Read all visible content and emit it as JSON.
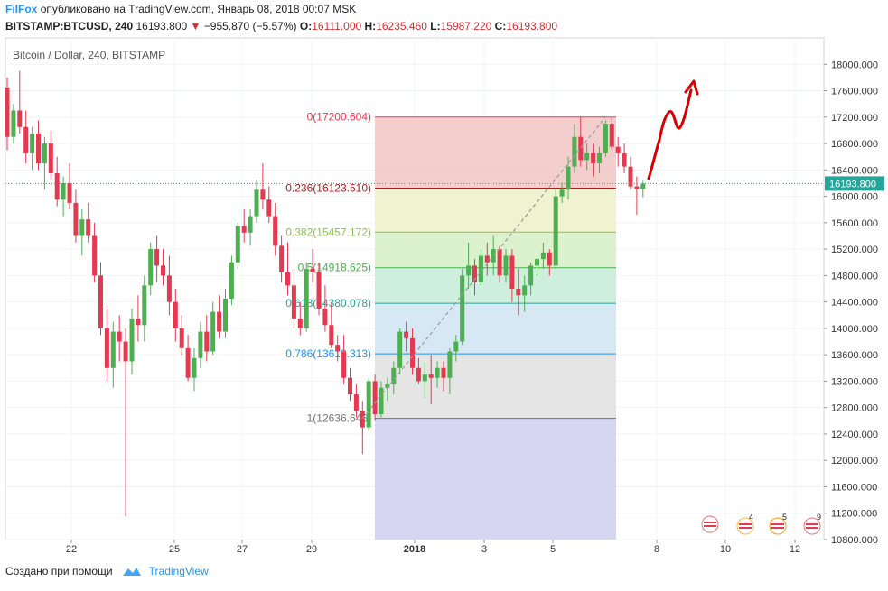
{
  "header": {
    "brand": "FilFox",
    "published": "опубликовано на TradingView.com, Январь 08, 2018 00:07 MSK",
    "symbol": "BITSTAMP:BTCUSD, 240",
    "last": "16193.800",
    "change": "−955.870 (−5.57%)",
    "open_label": "O:",
    "open": "16111.000",
    "high_label": "H:",
    "high": "16235.460",
    "low_label": "L:",
    "low": "15987.220",
    "close_label": "C:",
    "close": "16193.800"
  },
  "footer": {
    "created_with": "Создано при помощи",
    "tradingview": "TradingView"
  },
  "colors": {
    "up": "#4caf50",
    "down": "#e53950",
    "price_line": "#26a69a",
    "arrow": "#d50000",
    "brand": "#2196f3"
  },
  "chart_data": {
    "type": "candlestick",
    "title": "Bitcoin / Dollar, 240, BITSTAMP",
    "ylim": [
      10800,
      18400
    ],
    "y_ticks": [
      "18000.000",
      "17600.000",
      "17200.000",
      "16800.000",
      "16400.000",
      "16000.000",
      "15600.000",
      "15200.000",
      "14800.000",
      "14400.000",
      "14000.000",
      "13600.000",
      "13200.000",
      "12800.000",
      "12400.000",
      "12000.000",
      "11600.000",
      "11200.000",
      "10800.000"
    ],
    "x_ticks": [
      "22",
      "25",
      "27",
      "29",
      "2018",
      "3",
      "5",
      "8",
      "10",
      "12"
    ],
    "last_price": 16193.8,
    "last_price_label": "16193.800",
    "fib_levels": [
      {
        "ratio": 0,
        "price": 17200.604,
        "label": "0(17200.604)",
        "color": "#e53950",
        "zone": "#f2c4c4"
      },
      {
        "ratio": 0.236,
        "price": 16123.51,
        "label": "0.236(16123.510)",
        "color": "#b71c1c",
        "zone": "#eef0c8"
      },
      {
        "ratio": 0.382,
        "price": 15457.172,
        "label": "0.382(15457.172)",
        "color": "#8bc34a",
        "zone": "#d6efc6"
      },
      {
        "ratio": 0.5,
        "price": 14918.625,
        "label": "0.5(14918.625)",
        "color": "#4caf50",
        "zone": "#c6ecd8"
      },
      {
        "ratio": 0.618,
        "price": 14380.078,
        "label": "0.618(14380.078)",
        "color": "#26a69a",
        "zone": "#cfe4f2"
      },
      {
        "ratio": 0.786,
        "price": 13613.313,
        "label": "0.786(13613.313)",
        "color": "#2196f3",
        "zone": "#e0e0e0"
      },
      {
        "ratio": 1,
        "price": 12636.646,
        "label": "1(12636.646)",
        "color": "#757575",
        "zone": "#cfcff0"
      }
    ],
    "candles": [
      [
        17650,
        17800,
        16700,
        16900
      ],
      [
        16900,
        17400,
        16800,
        17300
      ],
      [
        17300,
        17900,
        16950,
        17050
      ],
      [
        17050,
        17300,
        16500,
        16650
      ],
      [
        16650,
        17050,
        16400,
        16950
      ],
      [
        16950,
        17150,
        16400,
        16500
      ],
      [
        16500,
        16900,
        16100,
        16800
      ],
      [
        16800,
        17000,
        16250,
        16350
      ],
      [
        16350,
        16600,
        15850,
        15950
      ],
      [
        15950,
        16300,
        15700,
        16200
      ],
      [
        16200,
        16500,
        15800,
        15900
      ],
      [
        15900,
        16100,
        15300,
        15400
      ],
      [
        15400,
        15800,
        15100,
        15650
      ],
      [
        15650,
        15900,
        15300,
        15400
      ],
      [
        15400,
        15600,
        14700,
        14800
      ],
      [
        14800,
        15000,
        13900,
        14000
      ],
      [
        14000,
        14300,
        13200,
        13400
      ],
      [
        13400,
        14100,
        13100,
        13950
      ],
      [
        13950,
        14200,
        13500,
        13800
      ],
      [
        13800,
        14000,
        11150,
        13500
      ],
      [
        13500,
        14300,
        13300,
        14150
      ],
      [
        14150,
        14500,
        13800,
        14050
      ],
      [
        14050,
        14800,
        13800,
        14650
      ],
      [
        14650,
        15300,
        14500,
        15200
      ],
      [
        15200,
        15400,
        14700,
        14950
      ],
      [
        14950,
        15200,
        14650,
        14800
      ],
      [
        14800,
        15100,
        14200,
        14400
      ],
      [
        14400,
        14600,
        13800,
        14000
      ],
      [
        14000,
        14200,
        13600,
        13700
      ],
      [
        13700,
        13900,
        13200,
        13250
      ],
      [
        13250,
        13700,
        13050,
        13550
      ],
      [
        13550,
        14100,
        13400,
        13950
      ],
      [
        13950,
        14200,
        13500,
        13650
      ],
      [
        13650,
        14400,
        13600,
        14250
      ],
      [
        14250,
        14500,
        13850,
        13950
      ],
      [
        13950,
        14600,
        13850,
        14450
      ],
      [
        14450,
        15100,
        14350,
        15000
      ],
      [
        15000,
        15600,
        14900,
        15550
      ],
      [
        15550,
        15800,
        15300,
        15450
      ],
      [
        15450,
        15800,
        15250,
        15700
      ],
      [
        15700,
        16250,
        15600,
        16100
      ],
      [
        16100,
        16500,
        15800,
        15950
      ],
      [
        15950,
        16150,
        15600,
        15700
      ],
      [
        15700,
        15900,
        15100,
        15250
      ],
      [
        15250,
        15400,
        14700,
        14850
      ],
      [
        14850,
        15300,
        14500,
        14650
      ],
      [
        14650,
        14900,
        14000,
        14150
      ],
      [
        14150,
        14400,
        13900,
        14000
      ],
      [
        14000,
        15000,
        13950,
        14900
      ],
      [
        14900,
        15200,
        14700,
        14850
      ],
      [
        14850,
        15000,
        14200,
        14300
      ],
      [
        14300,
        14650,
        13950,
        14050
      ],
      [
        14050,
        14400,
        13700,
        13750
      ],
      [
        13750,
        13900,
        13500,
        13650
      ],
      [
        13650,
        13900,
        13150,
        13250
      ],
      [
        13250,
        13400,
        12900,
        13000
      ],
      [
        13000,
        13150,
        12650,
        12750
      ],
      [
        12750,
        12900,
        12100,
        12500
      ],
      [
        12500,
        13250,
        12450,
        13200
      ],
      [
        13200,
        13300,
        12600,
        12700
      ],
      [
        12700,
        13200,
        12650,
        13100
      ],
      [
        13100,
        13250,
        12900,
        13150
      ],
      [
        13150,
        13500,
        13000,
        13400
      ],
      [
        13400,
        14000,
        13300,
        13950
      ],
      [
        13950,
        14100,
        13650,
        13850
      ],
      [
        13850,
        14000,
        13300,
        13400
      ],
      [
        13400,
        13550,
        13150,
        13200
      ],
      [
        13200,
        13500,
        12950,
        13300
      ],
      [
        13300,
        13600,
        12850,
        13250
      ],
      [
        13250,
        13500,
        13100,
        13400
      ],
      [
        13400,
        13500,
        13050,
        13250
      ],
      [
        13250,
        13700,
        13000,
        13650
      ],
      [
        13650,
        13900,
        13500,
        13800
      ],
      [
        13800,
        14900,
        13750,
        14800
      ],
      [
        14800,
        15300,
        14600,
        14950
      ],
      [
        14950,
        15050,
        14500,
        14700
      ],
      [
        14700,
        15200,
        14650,
        15100
      ],
      [
        15100,
        15300,
        14800,
        15000
      ],
      [
        15000,
        15400,
        14800,
        15200
      ],
      [
        15200,
        15250,
        14700,
        14800
      ],
      [
        14800,
        15200,
        14700,
        15100
      ],
      [
        15100,
        15200,
        14400,
        14600
      ],
      [
        14600,
        14900,
        14200,
        14500
      ],
      [
        14500,
        14800,
        14250,
        14650
      ],
      [
        14650,
        15000,
        14500,
        14950
      ],
      [
        14950,
        15100,
        14800,
        15050
      ],
      [
        15050,
        15300,
        14900,
        15150
      ],
      [
        15150,
        15200,
        14800,
        14950
      ],
      [
        14950,
        16100,
        14900,
        16000
      ],
      [
        16000,
        16200,
        15900,
        16100
      ],
      [
        16100,
        16600,
        15950,
        16450
      ],
      [
        16450,
        17100,
        16350,
        16900
      ],
      [
        16900,
        17200,
        16450,
        16550
      ],
      [
        16550,
        16800,
        16400,
        16650
      ],
      [
        16650,
        16800,
        16300,
        16500
      ],
      [
        16500,
        16750,
        16350,
        16650
      ],
      [
        16650,
        17150,
        16600,
        17100
      ],
      [
        17100,
        17200,
        16700,
        16750
      ],
      [
        16750,
        16900,
        16450,
        16650
      ],
      [
        16650,
        16800,
        16350,
        16450
      ],
      [
        16450,
        16600,
        16100,
        16150
      ],
      [
        16150,
        16300,
        15720,
        16111
      ],
      [
        16111,
        16235,
        15987,
        16194
      ]
    ],
    "swing_line": {
      "from": [
        12636.646,
        57
      ],
      "to": [
        17200.604,
        96
      ]
    }
  }
}
